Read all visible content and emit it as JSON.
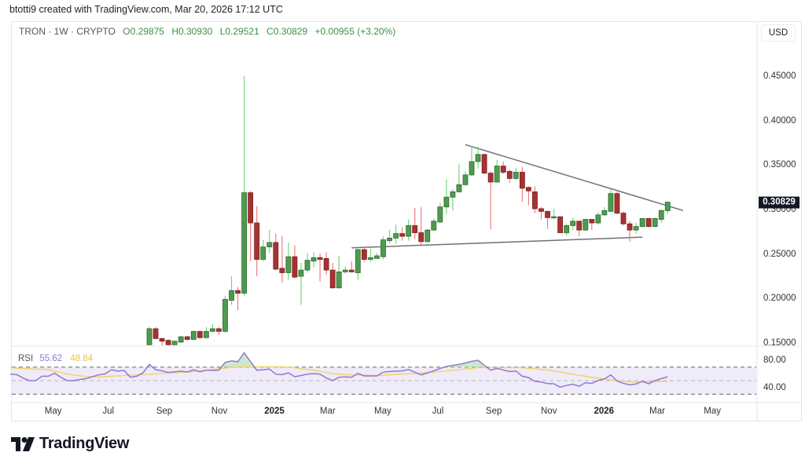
{
  "credit": "btotti9 created with TradingView.com, Mar 20, 2026 17:12 UTC",
  "legend": {
    "symbol": "TRON · 1W · CRYPTO",
    "open": "O0.29875",
    "high": "H0.30930",
    "low": "L0.29521",
    "close": "C0.30829",
    "change": "+0.00955 (+3.20%)"
  },
  "currency": "USD",
  "last_price": "0.30829",
  "rsi_legend": {
    "label": "RSI",
    "value": "55.62",
    "ma_value": "48.84"
  },
  "logo_text": "TradingView",
  "colors": {
    "up": "#4f9a50",
    "up_wick": "#7ad67a",
    "down": "#a83232",
    "down_wick": "#ef7f7f",
    "rsi": "#9278d0",
    "rsi_ma": "#f2d268",
    "trendline": "#707070"
  },
  "chart_data": {
    "type": "candlestick",
    "interval": "1W",
    "y_axis": {
      "ticks": [
        "0.45000",
        "0.40000",
        "0.35000",
        "0.30000",
        "0.25000",
        "0.20000",
        "0.15000"
      ],
      "ylim": [
        0.145,
        0.46
      ]
    },
    "x_axis": {
      "ticks": [
        {
          "date": "2024-05-01",
          "label": "May"
        },
        {
          "date": "2024-07-01",
          "label": "Jul"
        },
        {
          "date": "2024-09-01",
          "label": "Sep"
        },
        {
          "date": "2024-11-01",
          "label": "Nov"
        },
        {
          "date": "2025-01-01",
          "label": "2025",
          "year": true
        },
        {
          "date": "2025-03-01",
          "label": "Mar"
        },
        {
          "date": "2025-05-01",
          "label": "May"
        },
        {
          "date": "2025-07-01",
          "label": "Jul"
        },
        {
          "date": "2025-09-01",
          "label": "Sep"
        },
        {
          "date": "2025-11-01",
          "label": "Nov"
        },
        {
          "date": "2026-01-01",
          "label": "2026",
          "year": true
        },
        {
          "date": "2026-03-01",
          "label": "Mar"
        },
        {
          "date": "2026-05-01",
          "label": "May"
        }
      ]
    },
    "candles": [
      [
        "2024-08-19",
        0.148,
        0.168,
        0.145,
        0.166
      ],
      [
        "2024-08-26",
        0.166,
        0.168,
        0.154,
        0.155
      ],
      [
        "2024-09-02",
        0.155,
        0.156,
        0.147,
        0.152
      ],
      [
        "2024-09-09",
        0.153,
        0.154,
        0.146,
        0.148
      ],
      [
        "2024-09-16",
        0.148,
        0.153,
        0.147,
        0.152
      ],
      [
        "2024-09-23",
        0.151,
        0.158,
        0.15,
        0.157
      ],
      [
        "2024-09-30",
        0.157,
        0.158,
        0.153,
        0.154
      ],
      [
        "2024-10-07",
        0.154,
        0.164,
        0.153,
        0.163
      ],
      [
        "2024-10-14",
        0.163,
        0.164,
        0.155,
        0.156
      ],
      [
        "2024-10-21",
        0.156,
        0.168,
        0.155,
        0.163
      ],
      [
        "2024-10-28",
        0.163,
        0.171,
        0.162,
        0.166
      ],
      [
        "2024-11-04",
        0.166,
        0.168,
        0.159,
        0.163
      ],
      [
        "2024-11-11",
        0.163,
        0.203,
        0.162,
        0.199
      ],
      [
        "2024-11-18",
        0.198,
        0.225,
        0.193,
        0.209
      ],
      [
        "2024-11-25",
        0.209,
        0.213,
        0.187,
        0.206
      ],
      [
        "2024-12-02",
        0.206,
        0.45,
        0.203,
        0.319
      ],
      [
        "2024-12-09",
        0.319,
        0.321,
        0.242,
        0.285
      ],
      [
        "2024-12-16",
        0.285,
        0.304,
        0.225,
        0.244
      ],
      [
        "2024-12-23",
        0.244,
        0.266,
        0.242,
        0.258
      ],
      [
        "2024-12-30",
        0.258,
        0.277,
        0.251,
        0.263
      ],
      [
        "2025-01-06",
        0.263,
        0.273,
        0.232,
        0.233
      ],
      [
        "2025-01-13",
        0.234,
        0.27,
        0.218,
        0.229
      ],
      [
        "2025-01-20",
        0.229,
        0.263,
        0.221,
        0.247
      ],
      [
        "2025-01-27",
        0.247,
        0.26,
        0.223,
        0.224
      ],
      [
        "2025-02-03",
        0.225,
        0.24,
        0.193,
        0.232
      ],
      [
        "2025-02-10",
        0.232,
        0.251,
        0.229,
        0.243
      ],
      [
        "2025-02-17",
        0.242,
        0.252,
        0.235,
        0.246
      ],
      [
        "2025-02-24",
        0.246,
        0.251,
        0.219,
        0.244
      ],
      [
        "2025-03-03",
        0.245,
        0.252,
        0.227,
        0.232
      ],
      [
        "2025-03-10",
        0.232,
        0.24,
        0.211,
        0.212
      ],
      [
        "2025-03-17",
        0.212,
        0.248,
        0.211,
        0.23
      ],
      [
        "2025-03-24",
        0.23,
        0.236,
        0.228,
        0.232
      ],
      [
        "2025-03-31",
        0.232,
        0.242,
        0.229,
        0.23
      ],
      [
        "2025-04-07",
        0.229,
        0.256,
        0.221,
        0.255
      ],
      [
        "2025-04-14",
        0.255,
        0.259,
        0.241,
        0.244
      ],
      [
        "2025-04-21",
        0.244,
        0.256,
        0.241,
        0.246
      ],
      [
        "2025-04-28",
        0.245,
        0.251,
        0.245,
        0.248
      ],
      [
        "2025-05-05",
        0.247,
        0.27,
        0.244,
        0.266
      ],
      [
        "2025-05-12",
        0.265,
        0.277,
        0.262,
        0.268
      ],
      [
        "2025-05-19",
        0.268,
        0.283,
        0.262,
        0.273
      ],
      [
        "2025-05-26",
        0.273,
        0.28,
        0.265,
        0.27
      ],
      [
        "2025-06-02",
        0.27,
        0.289,
        0.265,
        0.282
      ],
      [
        "2025-06-09",
        0.282,
        0.302,
        0.267,
        0.274
      ],
      [
        "2025-06-16",
        0.274,
        0.303,
        0.26,
        0.264
      ],
      [
        "2025-06-23",
        0.264,
        0.278,
        0.263,
        0.277
      ],
      [
        "2025-06-30",
        0.277,
        0.29,
        0.276,
        0.287
      ],
      [
        "2025-07-07",
        0.286,
        0.308,
        0.285,
        0.303
      ],
      [
        "2025-07-14",
        0.303,
        0.334,
        0.295,
        0.314
      ],
      [
        "2025-07-21",
        0.314,
        0.323,
        0.299,
        0.32
      ],
      [
        "2025-07-28",
        0.32,
        0.351,
        0.319,
        0.328
      ],
      [
        "2025-08-04",
        0.328,
        0.343,
        0.327,
        0.339
      ],
      [
        "2025-08-11",
        0.339,
        0.371,
        0.338,
        0.354
      ],
      [
        "2025-08-18",
        0.354,
        0.371,
        0.346,
        0.362
      ],
      [
        "2025-08-25",
        0.362,
        0.363,
        0.34,
        0.341
      ],
      [
        "2025-09-01",
        0.341,
        0.343,
        0.278,
        0.331
      ],
      [
        "2025-09-08",
        0.331,
        0.356,
        0.33,
        0.349
      ],
      [
        "2025-09-15",
        0.349,
        0.354,
        0.34,
        0.342
      ],
      [
        "2025-09-22",
        0.343,
        0.345,
        0.33,
        0.335
      ],
      [
        "2025-09-29",
        0.335,
        0.347,
        0.333,
        0.342
      ],
      [
        "2025-10-06",
        0.342,
        0.348,
        0.309,
        0.324
      ],
      [
        "2025-10-13",
        0.325,
        0.326,
        0.305,
        0.321
      ],
      [
        "2025-10-20",
        0.32,
        0.326,
        0.296,
        0.301
      ],
      [
        "2025-10-27",
        0.301,
        0.303,
        0.289,
        0.298
      ],
      [
        "2025-11-03",
        0.298,
        0.299,
        0.278,
        0.291
      ],
      [
        "2025-11-10",
        0.291,
        0.301,
        0.289,
        0.292
      ],
      [
        "2025-11-17",
        0.292,
        0.292,
        0.274,
        0.274
      ],
      [
        "2025-11-24",
        0.274,
        0.284,
        0.271,
        0.282
      ],
      [
        "2025-12-01",
        0.282,
        0.291,
        0.277,
        0.287
      ],
      [
        "2025-12-08",
        0.287,
        0.287,
        0.27,
        0.277
      ],
      [
        "2025-12-15",
        0.277,
        0.289,
        0.276,
        0.289
      ],
      [
        "2025-12-22",
        0.289,
        0.289,
        0.277,
        0.285
      ],
      [
        "2025-12-29",
        0.285,
        0.297,
        0.283,
        0.294
      ],
      [
        "2026-01-05",
        0.294,
        0.303,
        0.293,
        0.299
      ],
      [
        "2026-01-12",
        0.298,
        0.323,
        0.297,
        0.318
      ],
      [
        "2026-01-19",
        0.318,
        0.32,
        0.295,
        0.296
      ],
      [
        "2026-01-26",
        0.296,
        0.298,
        0.282,
        0.284
      ],
      [
        "2026-02-02",
        0.284,
        0.287,
        0.264,
        0.277
      ],
      [
        "2026-02-09",
        0.277,
        0.285,
        0.273,
        0.281
      ],
      [
        "2026-02-16",
        0.281,
        0.29,
        0.28,
        0.29
      ],
      [
        "2026-02-23",
        0.29,
        0.29,
        0.28,
        0.281
      ],
      [
        "2026-03-02",
        0.281,
        0.291,
        0.28,
        0.29
      ],
      [
        "2026-03-09",
        0.289,
        0.3,
        0.285,
        0.299
      ],
      [
        "2026-03-16",
        0.29875,
        0.3093,
        0.29521,
        0.30829
      ]
    ],
    "trendlines": [
      {
        "name": "descending-resistance",
        "from": [
          "2025-08-04",
          0.373
        ],
        "to": [
          "2026-04-02",
          0.299
        ]
      },
      {
        "name": "ascending-support",
        "from": [
          "2025-03-31",
          0.257
        ],
        "to": [
          "2026-02-16",
          0.269
        ]
      }
    ],
    "rsi": {
      "label": "RSI",
      "levels": [
        70,
        50,
        30
      ],
      "axis_ticks": [
        "80.00",
        "40.00"
      ],
      "start_week": "2024-03-18",
      "values": [
        59.6,
        59,
        54,
        50,
        50,
        56.5,
        56.5,
        61,
        55,
        50,
        50,
        51.7,
        53,
        56,
        58.6,
        60,
        66,
        64,
        65,
        55,
        56.5,
        61.5,
        74,
        66,
        64.5,
        62,
        63,
        64,
        62.7,
        66,
        63,
        65.4,
        65,
        65.5,
        77,
        79,
        78,
        91,
        78,
        65.4,
        66,
        67,
        59.6,
        58.8,
        61.5,
        55.8,
        57.5,
        59.6,
        60.4,
        59.5,
        54,
        50,
        55,
        55.5,
        55,
        60.8,
        57,
        57,
        57,
        62.5,
        63.5,
        64,
        64.3,
        66.3,
        62.5,
        58.5,
        61.3,
        64.5,
        68,
        71,
        72.5,
        74,
        76,
        78.5,
        80,
        72.5,
        65.4,
        68,
        65.7,
        63.5,
        64.2,
        56.5,
        54.5,
        49,
        48,
        45.6,
        45.4,
        40.4,
        43,
        44.8,
        41.8,
        47,
        46,
        50.4,
        52.5,
        58.5,
        49.5,
        46,
        44,
        45,
        49,
        45.4,
        50,
        53,
        55.62
      ],
      "ma": [
        69.2,
        68.5,
        68,
        67.5,
        67,
        66.8,
        66.5,
        64,
        62,
        60,
        58.5,
        57,
        56,
        55.5,
        55.5,
        56,
        56.5,
        57,
        57.5,
        58,
        58.5,
        59,
        59.5,
        60,
        60.8,
        61.3,
        61.8,
        62.3,
        62.8,
        63.5,
        64.5,
        65.5,
        66.5,
        67.5,
        68.5,
        69.5,
        70,
        70.4,
        70.4,
        70.4,
        70.4,
        70.4,
        70.4,
        70.4,
        70.2,
        69,
        67.5,
        66.5,
        65.4,
        64,
        62,
        60.5,
        59.6,
        59,
        58.6,
        58.2,
        58,
        57.8,
        57.7,
        58.2,
        58.8,
        59.3,
        59.8,
        60.2,
        60.4,
        61.2,
        62,
        62.8,
        63.6,
        64.2,
        65.2,
        66.2,
        67.2,
        68.2,
        69.2,
        69.2,
        69.2,
        69.2,
        69.2,
        69.2,
        69.2,
        69,
        68.2,
        67.5,
        66.5,
        65.6,
        64,
        62.5,
        61,
        59.5,
        57.9,
        56.5,
        55,
        53.5,
        52.5,
        51,
        50,
        49,
        48,
        48,
        48.3,
        48.6,
        48.8,
        49,
        48.84
      ]
    }
  }
}
